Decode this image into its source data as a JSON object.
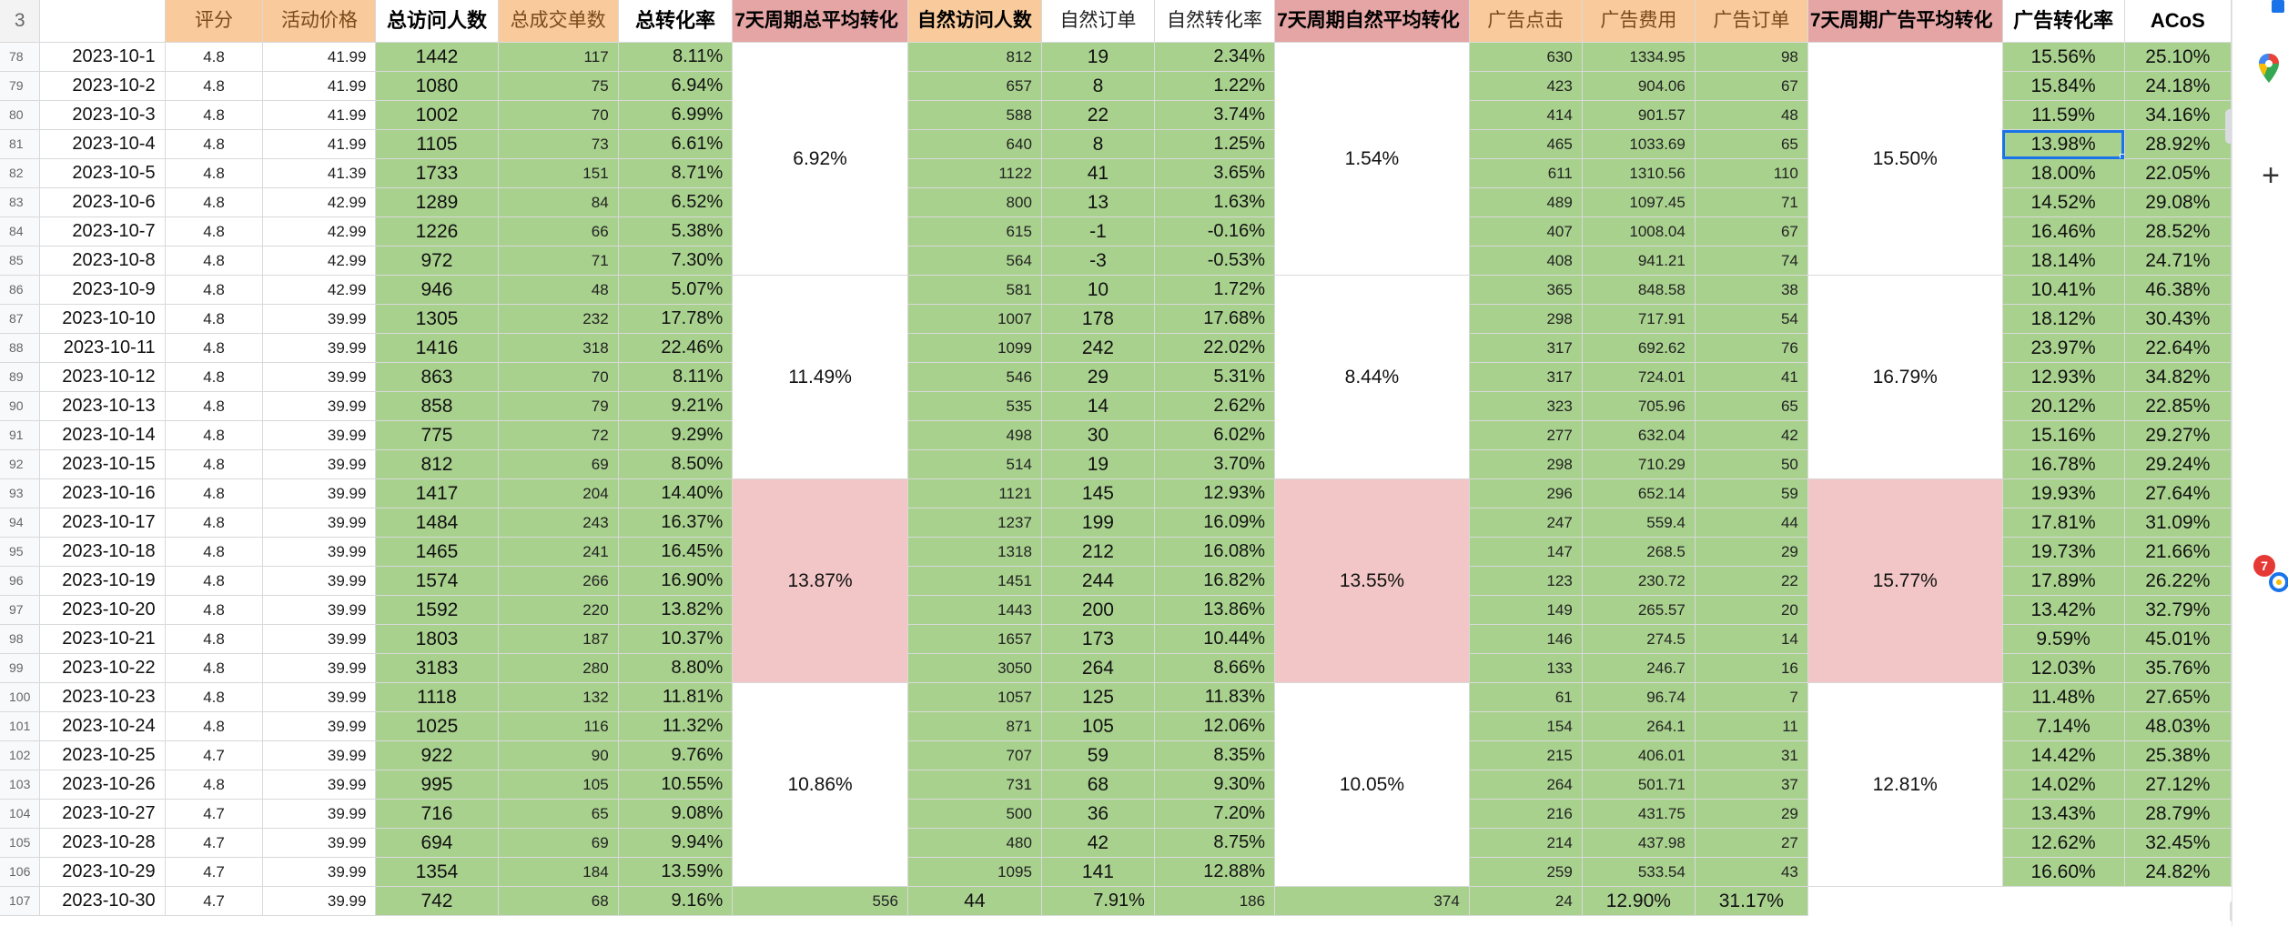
{
  "headers": {
    "row_number": "3",
    "rating": "评分",
    "promo_price": "活动价格",
    "total_visitors": "总访问人数",
    "total_orders": "总成交单数",
    "total_conv": "总转化率",
    "week_total_avg": "7天周期总平均转化",
    "natural_visitors": "自然访问人数",
    "natural_orders": "自然订单",
    "natural_conv": "自然转化率",
    "week_natural_avg": "7天周期自然平均转化",
    "ad_clicks": "广告点击",
    "ad_cost": "广告费用",
    "ad_orders": "广告订单",
    "week_ad_avg": "7天周期广告平均转化",
    "ad_conv": "广告转化率",
    "acos": "ACoS"
  },
  "rows": [
    {
      "rn": "78",
      "date": "2023-10-1",
      "rating": "4.8",
      "price": "41.99",
      "tv": "1442",
      "to": "117",
      "tc": "8.11%",
      "nv": "812",
      "no": "19",
      "nc": "2.34%",
      "ac": "630",
      "cost": "1334.95",
      "ao": "98",
      "aconv": "15.56%",
      "acos": "25.10%"
    },
    {
      "rn": "79",
      "date": "2023-10-2",
      "rating": "4.8",
      "price": "41.99",
      "tv": "1080",
      "to": "75",
      "tc": "6.94%",
      "nv": "657",
      "no": "8",
      "nc": "1.22%",
      "ac": "423",
      "cost": "904.06",
      "ao": "67",
      "aconv": "15.84%",
      "acos": "24.18%"
    },
    {
      "rn": "80",
      "date": "2023-10-3",
      "rating": "4.8",
      "price": "41.99",
      "tv": "1002",
      "to": "70",
      "tc": "6.99%",
      "nv": "588",
      "no": "22",
      "nc": "3.74%",
      "ac": "414",
      "cost": "901.57",
      "ao": "48",
      "aconv": "11.59%",
      "acos": "34.16%"
    },
    {
      "rn": "81",
      "date": "2023-10-4",
      "rating": "4.8",
      "price": "41.99",
      "tv": "1105",
      "to": "73",
      "tc": "6.61%",
      "nv": "640",
      "no": "8",
      "nc": "1.25%",
      "ac": "465",
      "cost": "1033.69",
      "ao": "65",
      "aconv": "13.98%",
      "acos": "28.92%"
    },
    {
      "rn": "82",
      "date": "2023-10-5",
      "rating": "4.8",
      "price": "41.39",
      "tv": "1733",
      "to": "151",
      "tc": "8.71%",
      "nv": "1122",
      "no": "41",
      "nc": "3.65%",
      "ac": "611",
      "cost": "1310.56",
      "ao": "110",
      "aconv": "18.00%",
      "acos": "22.05%"
    },
    {
      "rn": "83",
      "date": "2023-10-6",
      "rating": "4.8",
      "price": "42.99",
      "tv": "1289",
      "to": "84",
      "tc": "6.52%",
      "nv": "800",
      "no": "13",
      "nc": "1.63%",
      "ac": "489",
      "cost": "1097.45",
      "ao": "71",
      "aconv": "14.52%",
      "acos": "29.08%"
    },
    {
      "rn": "84",
      "date": "2023-10-7",
      "rating": "4.8",
      "price": "42.99",
      "tv": "1226",
      "to": "66",
      "tc": "5.38%",
      "nv": "615",
      "no": "-1",
      "nc": "-0.16%",
      "ac": "407",
      "cost": "1008.04",
      "ao": "67",
      "aconv": "16.46%",
      "acos": "28.52%"
    },
    {
      "rn": "85",
      "date": "2023-10-8",
      "rating": "4.8",
      "price": "42.99",
      "tv": "972",
      "to": "71",
      "tc": "7.30%",
      "nv": "564",
      "no": "-3",
      "nc": "-0.53%",
      "ac": "408",
      "cost": "941.21",
      "ao": "74",
      "aconv": "18.14%",
      "acos": "24.71%"
    },
    {
      "rn": "86",
      "date": "2023-10-9",
      "rating": "4.8",
      "price": "42.99",
      "tv": "946",
      "to": "48",
      "tc": "5.07%",
      "nv": "581",
      "no": "10",
      "nc": "1.72%",
      "ac": "365",
      "cost": "848.58",
      "ao": "38",
      "aconv": "10.41%",
      "acos": "46.38%"
    },
    {
      "rn": "87",
      "date": "2023-10-10",
      "rating": "4.8",
      "price": "39.99",
      "tv": "1305",
      "to": "232",
      "tc": "17.78%",
      "nv": "1007",
      "no": "178",
      "nc": "17.68%",
      "ac": "298",
      "cost": "717.91",
      "ao": "54",
      "aconv": "18.12%",
      "acos": "30.43%"
    },
    {
      "rn": "88",
      "date": "2023-10-11",
      "rating": "4.8",
      "price": "39.99",
      "tv": "1416",
      "to": "318",
      "tc": "22.46%",
      "nv": "1099",
      "no": "242",
      "nc": "22.02%",
      "ac": "317",
      "cost": "692.62",
      "ao": "76",
      "aconv": "23.97%",
      "acos": "22.64%"
    },
    {
      "rn": "89",
      "date": "2023-10-12",
      "rating": "4.8",
      "price": "39.99",
      "tv": "863",
      "to": "70",
      "tc": "8.11%",
      "nv": "546",
      "no": "29",
      "nc": "5.31%",
      "ac": "317",
      "cost": "724.01",
      "ao": "41",
      "aconv": "12.93%",
      "acos": "34.82%"
    },
    {
      "rn": "90",
      "date": "2023-10-13",
      "rating": "4.8",
      "price": "39.99",
      "tv": "858",
      "to": "79",
      "tc": "9.21%",
      "nv": "535",
      "no": "14",
      "nc": "2.62%",
      "ac": "323",
      "cost": "705.96",
      "ao": "65",
      "aconv": "20.12%",
      "acos": "22.85%"
    },
    {
      "rn": "91",
      "date": "2023-10-14",
      "rating": "4.8",
      "price": "39.99",
      "tv": "775",
      "to": "72",
      "tc": "9.29%",
      "nv": "498",
      "no": "30",
      "nc": "6.02%",
      "ac": "277",
      "cost": "632.04",
      "ao": "42",
      "aconv": "15.16%",
      "acos": "29.27%"
    },
    {
      "rn": "92",
      "date": "2023-10-15",
      "rating": "4.8",
      "price": "39.99",
      "tv": "812",
      "to": "69",
      "tc": "8.50%",
      "nv": "514",
      "no": "19",
      "nc": "3.70%",
      "ac": "298",
      "cost": "710.29",
      "ao": "50",
      "aconv": "16.78%",
      "acos": "29.24%"
    },
    {
      "rn": "93",
      "date": "2023-10-16",
      "rating": "4.8",
      "price": "39.99",
      "tv": "1417",
      "to": "204",
      "tc": "14.40%",
      "nv": "1121",
      "no": "145",
      "nc": "12.93%",
      "ac": "296",
      "cost": "652.14",
      "ao": "59",
      "aconv": "19.93%",
      "acos": "27.64%"
    },
    {
      "rn": "94",
      "date": "2023-10-17",
      "rating": "4.8",
      "price": "39.99",
      "tv": "1484",
      "to": "243",
      "tc": "16.37%",
      "nv": "1237",
      "no": "199",
      "nc": "16.09%",
      "ac": "247",
      "cost": "559.4",
      "ao": "44",
      "aconv": "17.81%",
      "acos": "31.09%"
    },
    {
      "rn": "95",
      "date": "2023-10-18",
      "rating": "4.8",
      "price": "39.99",
      "tv": "1465",
      "to": "241",
      "tc": "16.45%",
      "nv": "1318",
      "no": "212",
      "nc": "16.08%",
      "ac": "147",
      "cost": "268.5",
      "ao": "29",
      "aconv": "19.73%",
      "acos": "21.66%"
    },
    {
      "rn": "96",
      "date": "2023-10-19",
      "rating": "4.8",
      "price": "39.99",
      "tv": "1574",
      "to": "266",
      "tc": "16.90%",
      "nv": "1451",
      "no": "244",
      "nc": "16.82%",
      "ac": "123",
      "cost": "230.72",
      "ao": "22",
      "aconv": "17.89%",
      "acos": "26.22%"
    },
    {
      "rn": "97",
      "date": "2023-10-20",
      "rating": "4.8",
      "price": "39.99",
      "tv": "1592",
      "to": "220",
      "tc": "13.82%",
      "nv": "1443",
      "no": "200",
      "nc": "13.86%",
      "ac": "149",
      "cost": "265.57",
      "ao": "20",
      "aconv": "13.42%",
      "acos": "32.79%"
    },
    {
      "rn": "98",
      "date": "2023-10-21",
      "rating": "4.8",
      "price": "39.99",
      "tv": "1803",
      "to": "187",
      "tc": "10.37%",
      "nv": "1657",
      "no": "173",
      "nc": "10.44%",
      "ac": "146",
      "cost": "274.5",
      "ao": "14",
      "aconv": "9.59%",
      "acos": "45.01%"
    },
    {
      "rn": "99",
      "date": "2023-10-22",
      "rating": "4.8",
      "price": "39.99",
      "tv": "3183",
      "to": "280",
      "tc": "8.80%",
      "nv": "3050",
      "no": "264",
      "nc": "8.66%",
      "ac": "133",
      "cost": "246.7",
      "ao": "16",
      "aconv": "12.03%",
      "acos": "35.76%"
    },
    {
      "rn": "100",
      "date": "2023-10-23",
      "rating": "4.8",
      "price": "39.99",
      "tv": "1118",
      "to": "132",
      "tc": "11.81%",
      "nv": "1057",
      "no": "125",
      "nc": "11.83%",
      "ac": "61",
      "cost": "96.74",
      "ao": "7",
      "aconv": "11.48%",
      "acos": "27.65%"
    },
    {
      "rn": "101",
      "date": "2023-10-24",
      "rating": "4.8",
      "price": "39.99",
      "tv": "1025",
      "to": "116",
      "tc": "11.32%",
      "nv": "871",
      "no": "105",
      "nc": "12.06%",
      "ac": "154",
      "cost": "264.1",
      "ao": "11",
      "aconv": "7.14%",
      "acos": "48.03%"
    },
    {
      "rn": "102",
      "date": "2023-10-25",
      "rating": "4.7",
      "price": "39.99",
      "tv": "922",
      "to": "90",
      "tc": "9.76%",
      "nv": "707",
      "no": "59",
      "nc": "8.35%",
      "ac": "215",
      "cost": "406.01",
      "ao": "31",
      "aconv": "14.42%",
      "acos": "25.38%"
    },
    {
      "rn": "103",
      "date": "2023-10-26",
      "rating": "4.8",
      "price": "39.99",
      "tv": "995",
      "to": "105",
      "tc": "10.55%",
      "nv": "731",
      "no": "68",
      "nc": "9.30%",
      "ac": "264",
      "cost": "501.71",
      "ao": "37",
      "aconv": "14.02%",
      "acos": "27.12%"
    },
    {
      "rn": "104",
      "date": "2023-10-27",
      "rating": "4.7",
      "price": "39.99",
      "tv": "716",
      "to": "65",
      "tc": "9.08%",
      "nv": "500",
      "no": "36",
      "nc": "7.20%",
      "ac": "216",
      "cost": "431.75",
      "ao": "29",
      "aconv": "13.43%",
      "acos": "28.79%"
    },
    {
      "rn": "105",
      "date": "2023-10-28",
      "rating": "4.7",
      "price": "39.99",
      "tv": "694",
      "to": "69",
      "tc": "9.94%",
      "nv": "480",
      "no": "42",
      "nc": "8.75%",
      "ac": "214",
      "cost": "437.98",
      "ao": "27",
      "aconv": "12.62%",
      "acos": "32.45%"
    },
    {
      "rn": "106",
      "date": "2023-10-29",
      "rating": "4.7",
      "price": "39.99",
      "tv": "1354",
      "to": "184",
      "tc": "13.59%",
      "nv": "1095",
      "no": "141",
      "nc": "12.88%",
      "ac": "259",
      "cost": "533.54",
      "ao": "43",
      "aconv": "16.60%",
      "acos": "24.82%"
    },
    {
      "rn": "107",
      "date": "2023-10-30",
      "rating": "4.7",
      "price": "39.99",
      "tv": "742",
      "to": "68",
      "tc": "9.16%",
      "nv": "556",
      "no": "44",
      "nc": "7.91%",
      "ac": "186",
      "cost": "374",
      "ao": "24",
      "aconv": "12.90%",
      "acos": "31.17%"
    }
  ],
  "weekly_groups": [
    {
      "total_avg": "6.92%",
      "natural_avg": "1.54%",
      "ad_avg": "15.50%",
      "highlight": false
    },
    {
      "total_avg": "11.49%",
      "natural_avg": "8.44%",
      "ad_avg": "16.79%",
      "highlight": false
    },
    {
      "total_avg": "13.87%",
      "natural_avg": "13.55%",
      "ad_avg": "15.77%",
      "highlight": true
    },
    {
      "total_avg": "10.86%",
      "natural_avg": "10.05%",
      "ad_avg": "12.81%",
      "highlight": false
    }
  ],
  "selected_cell": {
    "row": "81",
    "column": "广告转化率"
  },
  "notification_badge": "7",
  "colors": {
    "green": "#a9d18e",
    "orange_header": "#f9cb9c",
    "pink_header": "#e6a5a5",
    "pink_cell": "#f2c6c6",
    "selection": "#1a73e8"
  },
  "side_icons": [
    "maps-icon",
    "add-icon",
    "notification-icon"
  ]
}
